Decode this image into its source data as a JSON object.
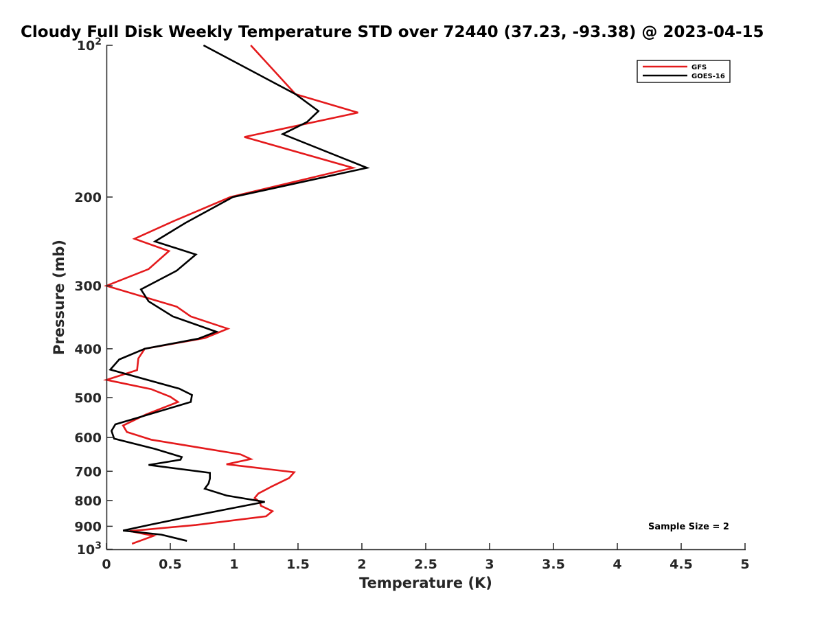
{
  "chart_data": {
    "type": "line",
    "title": "Cloudy Full Disk Weekly Temperature STD over 72440 (37.23, -93.38) @ 2023-04-15",
    "xlabel": "Temperature (K)",
    "ylabel": "Pressure (mb)",
    "xlim": [
      0,
      5
    ],
    "ylim": [
      100,
      1000
    ],
    "y_scale": "log",
    "y_reversed": true,
    "x_ticks": [
      "0",
      "0.5",
      "1",
      "1.5",
      "2",
      "2.5",
      "3",
      "3.5",
      "4",
      "4.5",
      "5"
    ],
    "y_ticks": [
      {
        "value": 100,
        "label": "10",
        "sup": "2"
      },
      {
        "value": 200,
        "label": "200",
        "sup": ""
      },
      {
        "value": 300,
        "label": "300",
        "sup": ""
      },
      {
        "value": 400,
        "label": "400",
        "sup": ""
      },
      {
        "value": 500,
        "label": "500",
        "sup": ""
      },
      {
        "value": 600,
        "label": "600",
        "sup": ""
      },
      {
        "value": 700,
        "label": "700",
        "sup": ""
      },
      {
        "value": 800,
        "label": "800",
        "sup": ""
      },
      {
        "value": 900,
        "label": "900",
        "sup": ""
      },
      {
        "value": 1000,
        "label": "10",
        "sup": "3"
      }
    ],
    "grid": false,
    "legend_position": "top-right",
    "series": [
      {
        "name": "GFS",
        "color": "#e41a1c",
        "points": [
          [
            1.13,
            100
          ],
          [
            1.48,
            125
          ],
          [
            1.97,
            136
          ],
          [
            1.08,
            152
          ],
          [
            1.93,
            175
          ],
          [
            0.97,
            200
          ],
          [
            0.53,
            223
          ],
          [
            0.22,
            242
          ],
          [
            0.49,
            256
          ],
          [
            0.33,
            278
          ],
          [
            0.0,
            300
          ],
          [
            0.55,
            330
          ],
          [
            0.66,
            345
          ],
          [
            0.95,
            365
          ],
          [
            0.77,
            381
          ],
          [
            0.3,
            400
          ],
          [
            0.25,
            418
          ],
          [
            0.24,
            441
          ],
          [
            0.0,
            461
          ],
          [
            0.35,
            481
          ],
          [
            0.5,
            498
          ],
          [
            0.56,
            510
          ],
          [
            0.31,
            540
          ],
          [
            0.13,
            568
          ],
          [
            0.16,
            585
          ],
          [
            0.35,
            606
          ],
          [
            1.05,
            648
          ],
          [
            1.13,
            662
          ],
          [
            0.94,
            678
          ],
          [
            1.47,
            703
          ],
          [
            1.43,
            722
          ],
          [
            1.3,
            749
          ],
          [
            1.19,
            775
          ],
          [
            1.16,
            791
          ],
          [
            1.2,
            805
          ],
          [
            1.21,
            820
          ],
          [
            1.3,
            840
          ],
          [
            1.25,
            860
          ],
          [
            0.7,
            895
          ],
          [
            0.18,
            920
          ],
          [
            0.37,
            940
          ],
          [
            0.2,
            975
          ]
        ]
      },
      {
        "name": "GOES-16",
        "color": "#000000",
        "points": [
          [
            0.76,
            100
          ],
          [
            1.48,
            125
          ],
          [
            1.66,
            135
          ],
          [
            1.57,
            142
          ],
          [
            1.38,
            150
          ],
          [
            2.04,
            175
          ],
          [
            0.99,
            200
          ],
          [
            0.62,
            225
          ],
          [
            0.38,
            245
          ],
          [
            0.7,
            260
          ],
          [
            0.55,
            280
          ],
          [
            0.27,
            305
          ],
          [
            0.33,
            322
          ],
          [
            0.52,
            345
          ],
          [
            0.86,
            370
          ],
          [
            0.72,
            382
          ],
          [
            0.3,
            400
          ],
          [
            0.1,
            420
          ],
          [
            0.03,
            440
          ],
          [
            0.57,
            480
          ],
          [
            0.67,
            494
          ],
          [
            0.66,
            510
          ],
          [
            0.07,
            565
          ],
          [
            0.04,
            582
          ],
          [
            0.06,
            603
          ],
          [
            0.38,
            632
          ],
          [
            0.59,
            656
          ],
          [
            0.58,
            664
          ],
          [
            0.33,
            680
          ],
          [
            0.81,
            705
          ],
          [
            0.81,
            724
          ],
          [
            0.8,
            740
          ],
          [
            0.77,
            758
          ],
          [
            0.94,
            782
          ],
          [
            1.24,
            805
          ],
          [
            0.97,
            830
          ],
          [
            0.64,
            862
          ],
          [
            0.35,
            893
          ],
          [
            0.13,
            918
          ],
          [
            0.43,
            935
          ],
          [
            0.63,
            962
          ]
        ]
      }
    ],
    "annotations": [
      "Sample Size = 2"
    ]
  }
}
